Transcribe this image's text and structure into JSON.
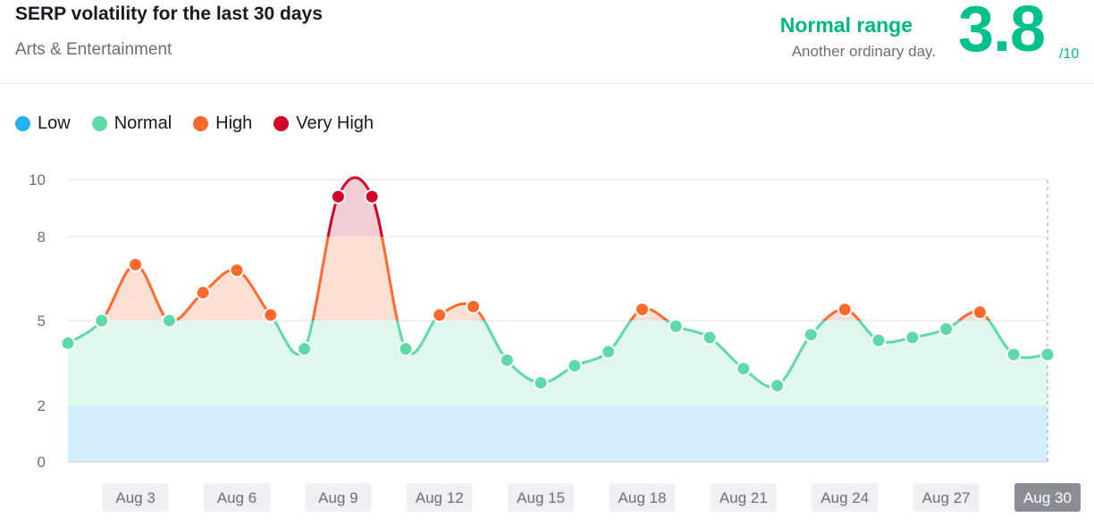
{
  "header": {
    "title": "SERP volatility for the last 30 days",
    "subtitle": "Arts & Entertainment",
    "range_status": "Normal range",
    "range_description": "Another ordinary day.",
    "score": "3.8",
    "score_max": "/10"
  },
  "colors": {
    "low": "#23b0f5",
    "normal": "#5ed9a8",
    "high": "#ff6a2c",
    "very_high": "#d4002c",
    "accent": "#00c08b"
  },
  "legend": [
    {
      "label": "Low",
      "key": "low"
    },
    {
      "label": "Normal",
      "key": "normal"
    },
    {
      "label": "High",
      "key": "high"
    },
    {
      "label": "Very High",
      "key": "very_high"
    }
  ],
  "chart_data": {
    "type": "area",
    "title": "SERP volatility for the last 30 days",
    "ylim": [
      0,
      10
    ],
    "yticks": [
      0,
      2,
      5,
      8,
      10
    ],
    "bands": [
      {
        "name": "Low",
        "from": 0,
        "to": 2
      },
      {
        "name": "Normal",
        "from": 2,
        "to": 5
      },
      {
        "name": "High",
        "from": 5,
        "to": 8
      },
      {
        "name": "Very High",
        "from": 8,
        "to": 10
      }
    ],
    "x": [
      1,
      2,
      3,
      4,
      5,
      6,
      7,
      8,
      9,
      10,
      11,
      12,
      13,
      14,
      15,
      16,
      17,
      18,
      19,
      20,
      21,
      22,
      23,
      24,
      25,
      26,
      27,
      28,
      29,
      30
    ],
    "values": [
      4.2,
      5.0,
      7.0,
      5.0,
      6.0,
      6.8,
      5.2,
      4.0,
      9.4,
      9.4,
      4.0,
      5.2,
      5.5,
      3.6,
      2.8,
      3.4,
      3.9,
      5.4,
      4.8,
      4.4,
      3.3,
      2.7,
      4.5,
      5.4,
      4.3,
      4.4,
      4.7,
      5.3,
      3.8,
      3.8
    ],
    "categories_shown": [
      "Aug 3",
      "Aug 6",
      "Aug 9",
      "Aug 12",
      "Aug 15",
      "Aug 18",
      "Aug 21",
      "Aug 24",
      "Aug 27",
      "Aug 30"
    ],
    "highlighted": "Aug 30"
  }
}
